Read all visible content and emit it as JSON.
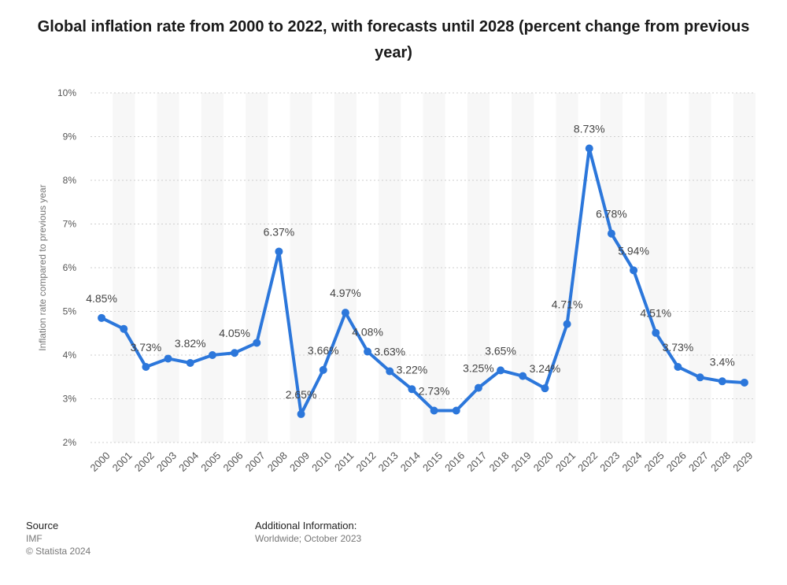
{
  "chart_data": {
    "type": "line",
    "title": "Global inflation rate from 2000 to 2022, with forecasts until 2028 (percent change from previous year)",
    "ylabel": "Inflation rate compared to previous year",
    "xlabel": "",
    "ylim": [
      2,
      10
    ],
    "yticks": [
      "2%",
      "3%",
      "4%",
      "5%",
      "6%",
      "7%",
      "8%",
      "9%",
      "10%"
    ],
    "categories": [
      "2000",
      "2001",
      "2002",
      "2003",
      "2004",
      "2005",
      "2006",
      "2007",
      "2008",
      "2009",
      "2010",
      "2011",
      "2012",
      "2013",
      "2014",
      "2015",
      "2016",
      "2017",
      "2018",
      "2019",
      "2020",
      "2021",
      "2022",
      "2023",
      "2024",
      "2025",
      "2026",
      "2027",
      "2028",
      "2029"
    ],
    "values": [
      4.85,
      4.6,
      3.73,
      3.92,
      3.82,
      4.0,
      4.05,
      4.28,
      6.37,
      2.65,
      3.66,
      4.97,
      4.08,
      3.63,
      3.22,
      2.73,
      2.73,
      3.25,
      3.65,
      3.52,
      3.24,
      4.71,
      8.73,
      6.78,
      5.94,
      4.51,
      3.73,
      3.49,
      3.4,
      3.37
    ],
    "labels": [
      "4.85%",
      "",
      "3.73%",
      "",
      "3.82%",
      "",
      "4.05%",
      "",
      "6.37%",
      "2.65%",
      "3.66%",
      "4.97%",
      "4.08%",
      "3.63%",
      "3.22%",
      "2.73%",
      "",
      "3.25%",
      "3.65%",
      "",
      "3.24%",
      "4.71%",
      "8.73%",
      "6.78%",
      "5.94%",
      "4.51%",
      "3.73%",
      "",
      "3.4%",
      ""
    ],
    "grid": true,
    "line_color": "#2c77db"
  },
  "footer": {
    "source_heading": "Source",
    "source_name": "IMF",
    "copyright": "© Statista 2024",
    "info_heading": "Additional Information:",
    "info_text": "Worldwide; October 2023"
  }
}
